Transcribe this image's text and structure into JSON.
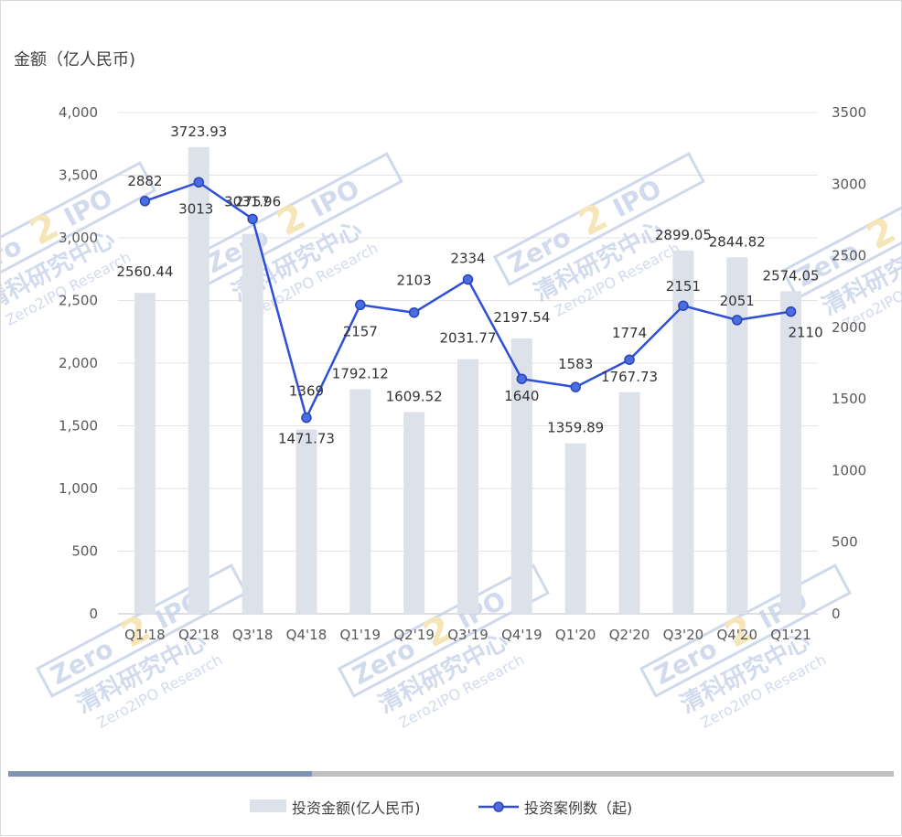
{
  "chart_data": {
    "type": "bar",
    "y_axis_title": "金额（亿人民币)",
    "categories": [
      "Q1'18",
      "Q2'18",
      "Q3'18",
      "Q4'18",
      "Q1'19",
      "Q2'19",
      "Q3'19",
      "Q4'19",
      "Q1'20",
      "Q2'20",
      "Q3'20",
      "Q4'20",
      "Q1'21"
    ],
    "series": [
      {
        "name": "投资金额(亿人民币)",
        "type": "bar",
        "axis": "left",
        "color": "#dde1ea",
        "values": [
          2560.44,
          3723.93,
          3031.96,
          1471.73,
          1792.12,
          1609.52,
          2031.77,
          2197.54,
          1359.89,
          1767.73,
          2899.05,
          2844.82,
          2574.05
        ],
        "labels": [
          "2560.44",
          "3723.93",
          "3031.96",
          "1471.73",
          "1792.12",
          "1609.52",
          "2031.77",
          "2197.54",
          "1359.89",
          "1767.73",
          "2899.05",
          "2844.82",
          "2574.05"
        ]
      },
      {
        "name": "投资案例数（起)",
        "type": "line",
        "axis": "right",
        "color": "#2f4fd8",
        "values": [
          2882,
          3013,
          2757,
          1369,
          2157,
          2103,
          2334,
          1640,
          1583,
          1774,
          2151,
          2051,
          2110
        ],
        "labels": [
          "2882",
          "3013",
          "2757",
          "1369",
          "2157",
          "2103",
          "2334",
          "1640",
          "1583",
          "1774",
          "2151",
          "2051",
          "2110"
        ]
      }
    ],
    "y_left": {
      "min": 0,
      "max": 4000,
      "step": 500,
      "tick_labels": [
        "0",
        "500",
        "1,000",
        "1,500",
        "2,000",
        "2,500",
        "3,000",
        "3,500",
        "4,000"
      ]
    },
    "y_right": {
      "min": 0,
      "max": 3500,
      "step": 500,
      "tick_labels": [
        "0",
        "500",
        "1000",
        "1500",
        "2000",
        "2500",
        "3000",
        "3500"
      ]
    },
    "grid": true,
    "legend_position": "bottom-center",
    "watermark": {
      "text_en": "Zero2IPO",
      "text_cn": "清科研究中心",
      "text_sub": "Zero2IPO Research"
    }
  }
}
